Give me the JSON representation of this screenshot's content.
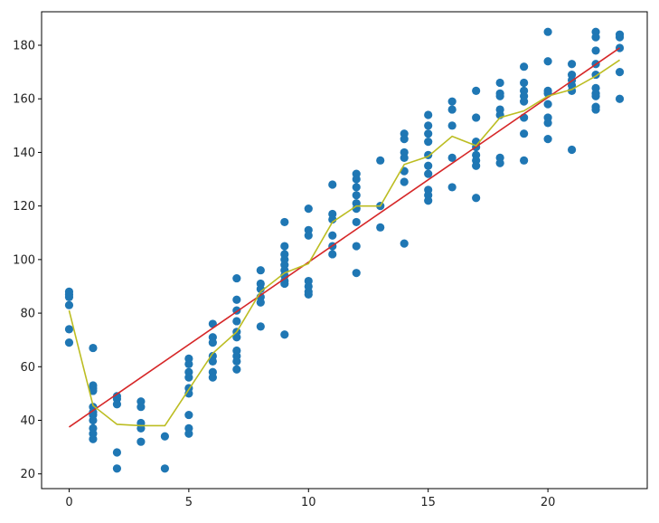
{
  "chart_data": {
    "type": "scatter",
    "title": "",
    "xlabel": "",
    "ylabel": "",
    "xlim": [
      -1.15,
      24.15
    ],
    "ylim": [
      14.5,
      192.5
    ],
    "x_ticks": [
      0,
      5,
      10,
      15,
      20
    ],
    "y_ticks": [
      20,
      40,
      60,
      80,
      100,
      120,
      140,
      160,
      180
    ],
    "grid": false,
    "legend": "none",
    "series": [
      {
        "kind": "scatter",
        "color": "#1f77b4",
        "points": [
          [
            0,
            88
          ],
          [
            0,
            87
          ],
          [
            0,
            86
          ],
          [
            0,
            83
          ],
          [
            0,
            74
          ],
          [
            0,
            69
          ],
          [
            1,
            67
          ],
          [
            1,
            53
          ],
          [
            1,
            52
          ],
          [
            1,
            51
          ],
          [
            1,
            45
          ],
          [
            1,
            43
          ],
          [
            1,
            42
          ],
          [
            1,
            40
          ],
          [
            1,
            37
          ],
          [
            1,
            35
          ],
          [
            1,
            33
          ],
          [
            2,
            49
          ],
          [
            2,
            48
          ],
          [
            2,
            46
          ],
          [
            2,
            28
          ],
          [
            2,
            22
          ],
          [
            3,
            47
          ],
          [
            3,
            45
          ],
          [
            3,
            39
          ],
          [
            3,
            37
          ],
          [
            3,
            32
          ],
          [
            4,
            34
          ],
          [
            4,
            22
          ],
          [
            5,
            63
          ],
          [
            5,
            61
          ],
          [
            5,
            58
          ],
          [
            5,
            56
          ],
          [
            5,
            52
          ],
          [
            5,
            50
          ],
          [
            5,
            42
          ],
          [
            5,
            37
          ],
          [
            5,
            35
          ],
          [
            6,
            76
          ],
          [
            6,
            71
          ],
          [
            6,
            69
          ],
          [
            6,
            64
          ],
          [
            6,
            62
          ],
          [
            6,
            58
          ],
          [
            6,
            56
          ],
          [
            7,
            93
          ],
          [
            7,
            85
          ],
          [
            7,
            81
          ],
          [
            7,
            77
          ],
          [
            7,
            73
          ],
          [
            7,
            71
          ],
          [
            7,
            66
          ],
          [
            7,
            64
          ],
          [
            7,
            62
          ],
          [
            7,
            59
          ],
          [
            8,
            96
          ],
          [
            8,
            91
          ],
          [
            8,
            89
          ],
          [
            8,
            86
          ],
          [
            8,
            84
          ],
          [
            8,
            75
          ],
          [
            9,
            114
          ],
          [
            9,
            105
          ],
          [
            9,
            102
          ],
          [
            9,
            100
          ],
          [
            9,
            98
          ],
          [
            9,
            96
          ],
          [
            9,
            94
          ],
          [
            9,
            92
          ],
          [
            9,
            91
          ],
          [
            9,
            72
          ],
          [
            10,
            119
          ],
          [
            10,
            111
          ],
          [
            10,
            109
          ],
          [
            10,
            92
          ],
          [
            10,
            90
          ],
          [
            10,
            88
          ],
          [
            10,
            87
          ],
          [
            11,
            128
          ],
          [
            11,
            117
          ],
          [
            11,
            115
          ],
          [
            11,
            109
          ],
          [
            11,
            105
          ],
          [
            11,
            102
          ],
          [
            12,
            132
          ],
          [
            12,
            130
          ],
          [
            12,
            127
          ],
          [
            12,
            124
          ],
          [
            12,
            121
          ],
          [
            12,
            119
          ],
          [
            12,
            114
          ],
          [
            12,
            105
          ],
          [
            12,
            95
          ],
          [
            13,
            137
          ],
          [
            13,
            120
          ],
          [
            13,
            112
          ],
          [
            14,
            147
          ],
          [
            14,
            145
          ],
          [
            14,
            140
          ],
          [
            14,
            138
          ],
          [
            14,
            133
          ],
          [
            14,
            129
          ],
          [
            14,
            106
          ],
          [
            15,
            154
          ],
          [
            15,
            150
          ],
          [
            15,
            147
          ],
          [
            15,
            144
          ],
          [
            15,
            139
          ],
          [
            15,
            135
          ],
          [
            15,
            132
          ],
          [
            15,
            126
          ],
          [
            15,
            124
          ],
          [
            15,
            122
          ],
          [
            16,
            159
          ],
          [
            16,
            156
          ],
          [
            16,
            150
          ],
          [
            16,
            138
          ],
          [
            16,
            127
          ],
          [
            17,
            163
          ],
          [
            17,
            153
          ],
          [
            17,
            144
          ],
          [
            17,
            142
          ],
          [
            17,
            139
          ],
          [
            17,
            137
          ],
          [
            17,
            135
          ],
          [
            17,
            123
          ],
          [
            18,
            166
          ],
          [
            18,
            162
          ],
          [
            18,
            161
          ],
          [
            18,
            156
          ],
          [
            18,
            154
          ],
          [
            18,
            138
          ],
          [
            18,
            136
          ],
          [
            19,
            172
          ],
          [
            19,
            166
          ],
          [
            19,
            163
          ],
          [
            19,
            161
          ],
          [
            19,
            159
          ],
          [
            19,
            153
          ],
          [
            19,
            147
          ],
          [
            19,
            137
          ],
          [
            20,
            185
          ],
          [
            20,
            174
          ],
          [
            20,
            163
          ],
          [
            20,
            162
          ],
          [
            20,
            158
          ],
          [
            20,
            153
          ],
          [
            20,
            151
          ],
          [
            20,
            145
          ],
          [
            21,
            173
          ],
          [
            21,
            169
          ],
          [
            21,
            167
          ],
          [
            21,
            165
          ],
          [
            21,
            163
          ],
          [
            21,
            141
          ],
          [
            22,
            185
          ],
          [
            22,
            183
          ],
          [
            22,
            178
          ],
          [
            22,
            173
          ],
          [
            22,
            169
          ],
          [
            22,
            164
          ],
          [
            22,
            162
          ],
          [
            22,
            161
          ],
          [
            22,
            157
          ],
          [
            22,
            156
          ],
          [
            23,
            184
          ],
          [
            23,
            183
          ],
          [
            23,
            179
          ],
          [
            23,
            170
          ],
          [
            23,
            160
          ]
        ]
      },
      {
        "kind": "line",
        "color": "#d62728",
        "x": [
          0,
          23
        ],
        "y": [
          37.5,
          179
        ]
      },
      {
        "kind": "line",
        "color": "#bcbd22",
        "x": [
          0,
          1,
          2,
          3,
          4,
          5,
          6,
          7,
          8,
          9,
          10,
          11,
          12,
          13,
          14,
          15,
          16,
          17,
          18,
          19,
          20,
          21,
          22,
          23
        ],
        "y": [
          81,
          45.5,
          38.5,
          38,
          38,
          51.5,
          65,
          73,
          88,
          95,
          98.5,
          114,
          120,
          120,
          135.5,
          138.5,
          146,
          142.5,
          153,
          155.5,
          161,
          163.5,
          168.5,
          174.5
        ]
      }
    ]
  }
}
